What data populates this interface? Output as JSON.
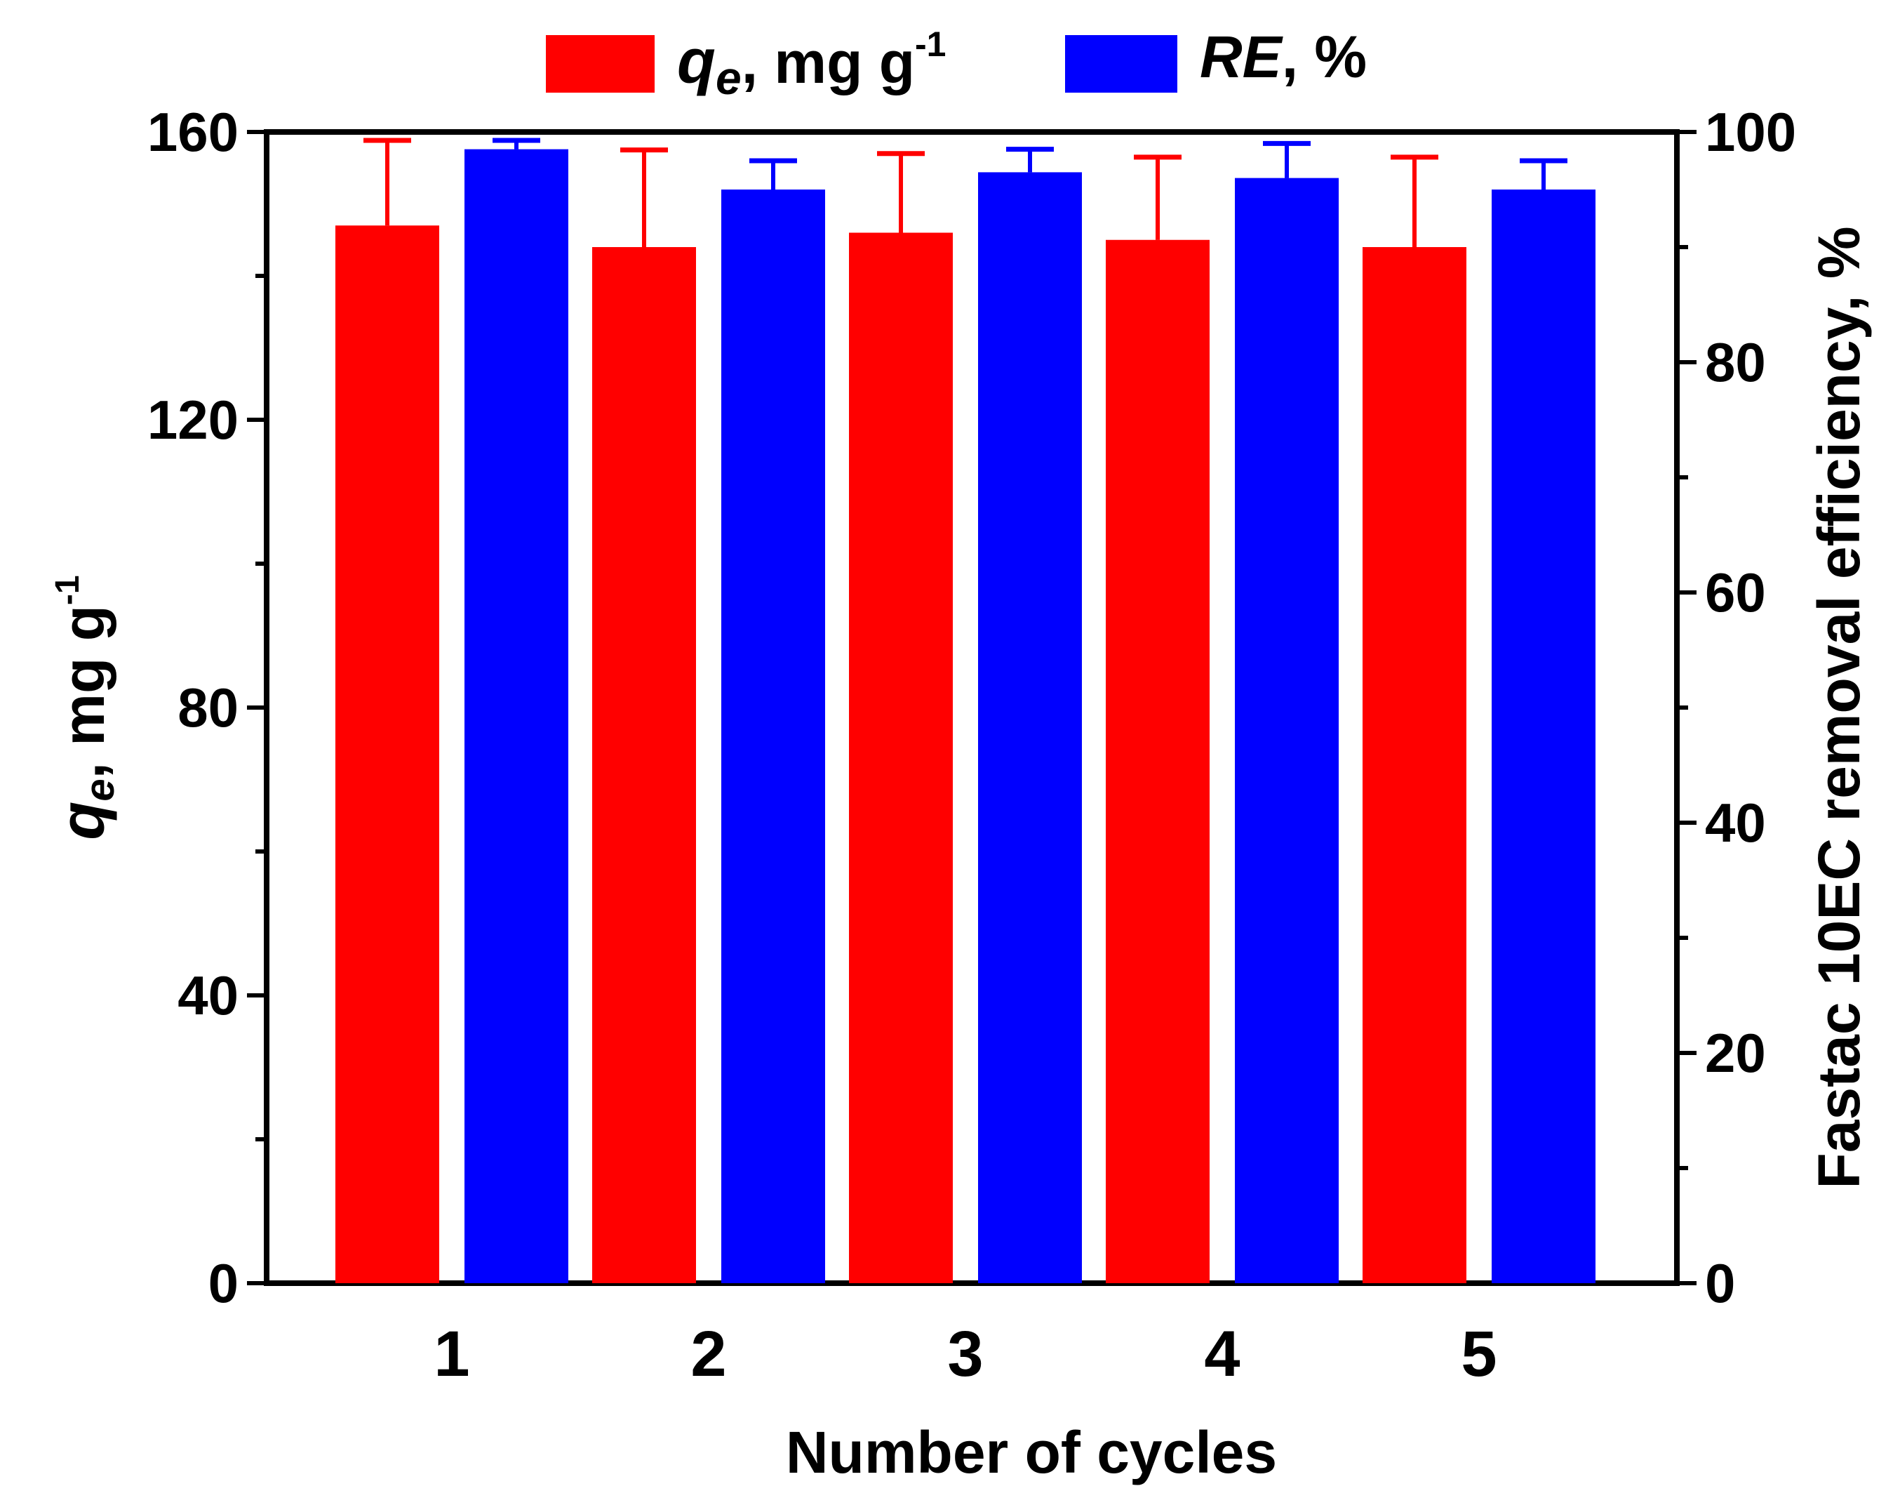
{
  "chart_data": {
    "type": "bar",
    "categories": [
      "1",
      "2",
      "3",
      "4",
      "5"
    ],
    "xlabel": "Number of cycles",
    "ylabel_left": {
      "symbol": "q",
      "subscript": "e",
      "unit": ", mg g",
      "superscript": "-1"
    },
    "ylabel_right": "Fastac 10EC removal efficiency, %",
    "ylim_left": [
      0,
      160
    ],
    "ylim_right": [
      0,
      100
    ],
    "yticks_left": [
      "0",
      "40",
      "80",
      "120",
      "160"
    ],
    "yticks_right": [
      "0",
      "20",
      "40",
      "60",
      "80",
      "100"
    ],
    "series": [
      {
        "name": "q_e, mg g-1",
        "legend": {
          "symbol": "q",
          "subscript": "e",
          "unit": ", mg g",
          "superscript": "-1"
        },
        "axis": "left",
        "color": "#ff0000",
        "values": [
          147,
          144,
          146,
          145,
          144
        ],
        "errors": [
          13,
          13.5,
          11,
          11.5,
          12.5
        ]
      },
      {
        "name": "RE, %",
        "legend": {
          "italic": "RE",
          "rest": ", %"
        },
        "axis": "right",
        "color": "#0000ff",
        "values": [
          98.5,
          95,
          96.5,
          96,
          95
        ],
        "errors": [
          1.5,
          2.5,
          2,
          3,
          2.5
        ]
      }
    ]
  }
}
